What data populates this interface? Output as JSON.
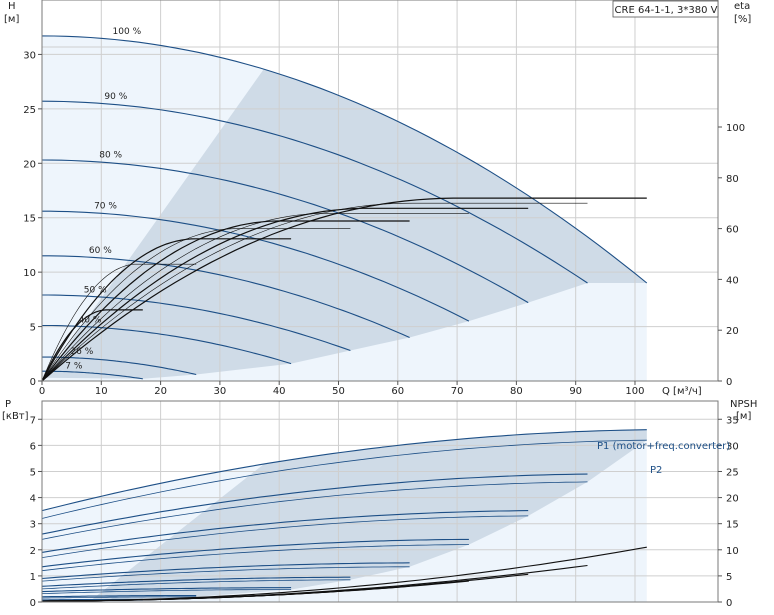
{
  "chart_data": [
    {
      "type": "line",
      "title": "CRE 64-1-1, 3*380 V",
      "x": {
        "label": "Q [м³/ч]",
        "range": [
          0,
          114
        ],
        "ticks": [
          0,
          10,
          20,
          30,
          40,
          50,
          60,
          70,
          80,
          90,
          100
        ]
      },
      "y_left": {
        "label_top": "H",
        "label_unit": "[м]",
        "range": [
          0,
          35
        ],
        "ticks": [
          0,
          5,
          10,
          15,
          20,
          25,
          30
        ]
      },
      "y_right": {
        "label_top": "eta",
        "label_unit": "[%]",
        "range": [
          0,
          150
        ],
        "ticks": [
          0,
          20,
          40,
          60,
          80,
          100
        ]
      },
      "grid": true,
      "legend": "none",
      "speed_curves": [
        {
          "label": "100 %",
          "pct": 100,
          "h0": 31.7,
          "qmax": 102,
          "hend": 9.0
        },
        {
          "label": "90 %",
          "pct": 90,
          "h0": 25.7,
          "qmax": 92,
          "hend": 9.0
        },
        {
          "label": "80 %",
          "pct": 80,
          "h0": 20.3,
          "qmax": 82,
          "hend": 7.2
        },
        {
          "label": "70 %",
          "pct": 70,
          "h0": 15.6,
          "qmax": 72,
          "hend": 5.5
        },
        {
          "label": "60 %",
          "pct": 60,
          "h0": 11.5,
          "qmax": 62,
          "hend": 4.0
        },
        {
          "label": "50 %",
          "pct": 50,
          "h0": 7.9,
          "qmax": 52,
          "hend": 2.8
        },
        {
          "label": "40 %",
          "pct": 40,
          "h0": 5.1,
          "qmax": 42,
          "hend": 1.6
        },
        {
          "label": "26 %",
          "pct": 26,
          "h0": 2.2,
          "qmax": 26,
          "hend": 0.6
        },
        {
          "label": "7 %",
          "pct": 7,
          "h0": 0.9,
          "qmax": 17,
          "hend": 0.2
        }
      ],
      "efficiency_curves": [
        {
          "qmax": 102,
          "peak_q": 70,
          "peak_eta": 72
        },
        {
          "qmax": 92,
          "peak_q": 62,
          "peak_eta": 70
        },
        {
          "qmax": 82,
          "peak_q": 55,
          "peak_eta": 68
        },
        {
          "qmax": 72,
          "peak_q": 48,
          "peak_eta": 66
        },
        {
          "qmax": 62,
          "peak_q": 40,
          "peak_eta": 63
        },
        {
          "qmax": 52,
          "peak_q": 33,
          "peak_eta": 60
        },
        {
          "qmax": 42,
          "peak_q": 26,
          "peak_eta": 56
        },
        {
          "qmax": 26,
          "peak_q": 16,
          "peak_eta": 46
        },
        {
          "qmax": 17,
          "peak_q": 11,
          "peak_eta": 28
        }
      ]
    },
    {
      "type": "line",
      "x": {
        "label": "",
        "range": [
          0,
          114
        ],
        "ticks": [
          0,
          10,
          20,
          30,
          40,
          50,
          60,
          70,
          80,
          90,
          100
        ]
      },
      "y_left": {
        "label_top": "P",
        "label_unit": "[кВт]",
        "range": [
          0,
          7.7
        ],
        "ticks": [
          0,
          1,
          2,
          3,
          4,
          5,
          6,
          7
        ]
      },
      "y_right": {
        "label_top": "NPSH",
        "label_unit": "[м]",
        "range": [
          0,
          38.5
        ],
        "ticks": [
          0,
          5,
          10,
          15,
          20,
          25,
          30,
          35
        ]
      },
      "grid": true,
      "series_labels": [
        {
          "name": "P1 (motor+freq.converter)",
          "attach_q": 100,
          "value": 6.6
        },
        {
          "name": "P2",
          "attach_q": 100,
          "value": 6.2
        }
      ],
      "power_curves": [
        {
          "qmax": 102,
          "p1_start": 3.5,
          "p1_end": 6.6,
          "p2_start": 3.2,
          "p2_end": 6.2
        },
        {
          "qmax": 92,
          "p1_start": 2.6,
          "p1_end": 4.9,
          "p2_start": 2.4,
          "p2_end": 4.6
        },
        {
          "qmax": 82,
          "p1_start": 1.9,
          "p1_end": 3.5,
          "p2_start": 1.7,
          "p2_end": 3.3
        },
        {
          "qmax": 72,
          "p1_start": 1.35,
          "p1_end": 2.4,
          "p2_start": 1.2,
          "p2_end": 2.2
        },
        {
          "qmax": 62,
          "p1_start": 0.9,
          "p1_end": 1.5,
          "p2_start": 0.8,
          "p2_end": 1.35
        },
        {
          "qmax": 52,
          "p1_start": 0.6,
          "p1_end": 0.95,
          "p2_start": 0.5,
          "p2_end": 0.85
        },
        {
          "qmax": 42,
          "p1_start": 0.4,
          "p1_end": 0.55,
          "p2_start": 0.32,
          "p2_end": 0.48
        },
        {
          "qmax": 26,
          "p1_start": 0.2,
          "p1_end": 0.25,
          "p2_start": 0.15,
          "p2_end": 0.2
        },
        {
          "qmax": 17,
          "p1_start": 0.08,
          "p1_end": 0.1,
          "p2_start": 0.05,
          "p2_end": 0.07
        }
      ],
      "npsh_curves": [
        {
          "qmax": 102,
          "npsh_end": 10.5
        },
        {
          "qmax": 92,
          "npsh_end": 7.0
        },
        {
          "qmax": 82,
          "npsh_end": 5.3
        },
        {
          "qmax": 72,
          "npsh_end": 4.0
        },
        {
          "qmax": 62,
          "npsh_end": 3.0
        },
        {
          "qmax": 52,
          "npsh_end": 2.2
        },
        {
          "qmax": 42,
          "npsh_end": 1.5
        }
      ]
    }
  ],
  "colors": {
    "region_light": "#eef5fc",
    "region_dark": "#cfdbe7",
    "curve_blue": "#1d4f86",
    "curve_black": "#111111",
    "label_blue": "#1d4f86"
  }
}
